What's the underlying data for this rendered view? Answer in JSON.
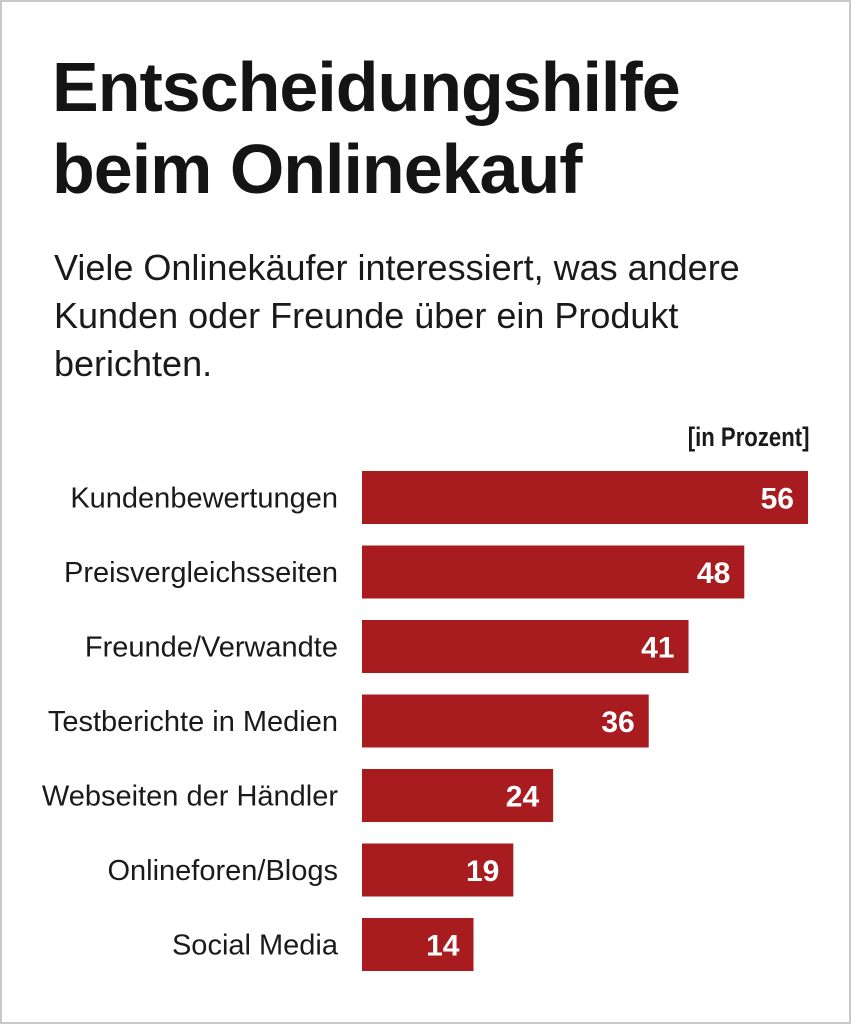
{
  "chart_data": {
    "type": "bar",
    "orientation": "horizontal",
    "title": "Entscheidungshilfe beim Onlinekauf",
    "subtitle": "Viele Onlinekäufer interessiert, was andere Kunden oder Freunde über ein Produkt berichten.",
    "unit_label": "[in Prozent]",
    "categories": [
      "Kundenbewertungen",
      "Preisvergleichsseiten",
      "Freunde/Verwandte",
      "Testberichte in Medien",
      "Webseiten der Händler",
      "Onlineforen/Blogs",
      "Social Media"
    ],
    "values": [
      56,
      48,
      41,
      36,
      24,
      19,
      14
    ],
    "xlim": [
      0,
      56
    ],
    "bar_color": "#a81c20",
    "grid": false
  }
}
